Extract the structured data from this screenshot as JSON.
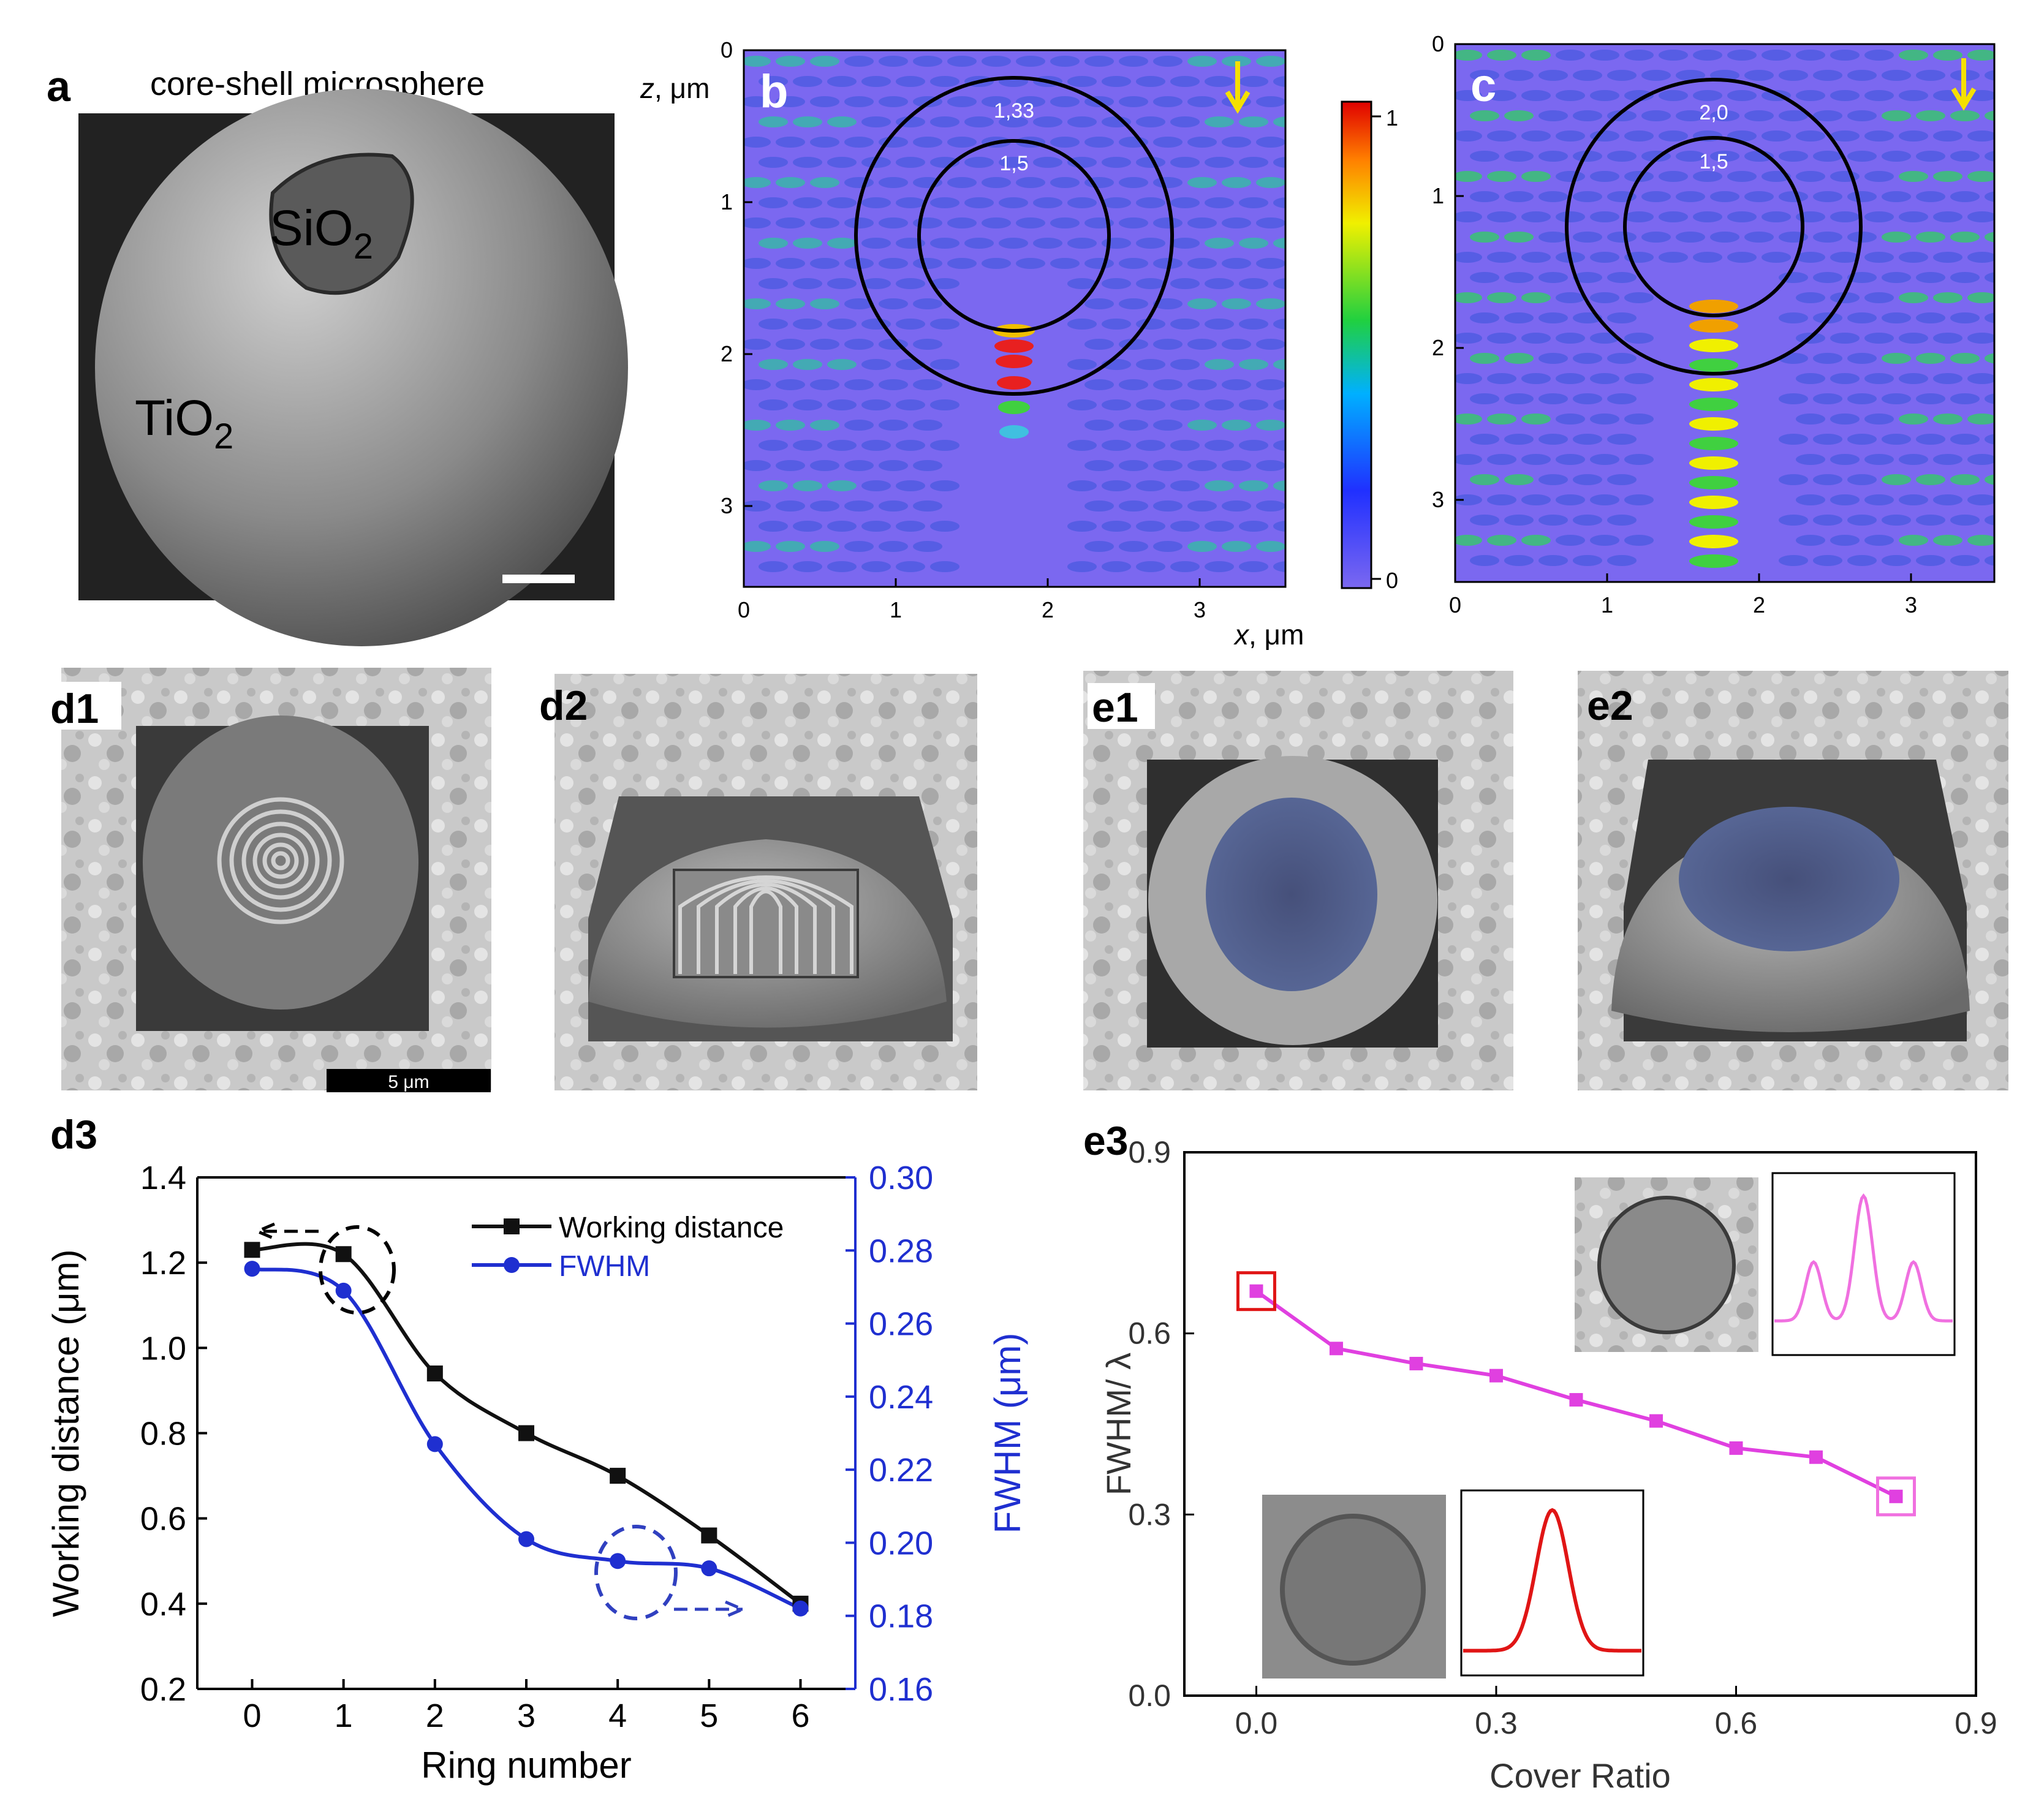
{
  "panels": {
    "a": {
      "letter": "a",
      "title": "core-shell microsphere",
      "core_label": "SiO",
      "core_sub": "2",
      "shell_label": "TiO",
      "shell_sub": "2"
    },
    "b": {
      "letter": "b",
      "outer_index": "1,33",
      "inner_index": "1,5"
    },
    "c": {
      "letter": "c",
      "outer_index": "2,0",
      "inner_index": "1,5"
    },
    "field_axes": {
      "z_label": "z",
      "z_unit": ", μm",
      "x_label": "x",
      "x_unit": ", μm",
      "x_ticks": [
        "0",
        "1",
        "2",
        "3"
      ],
      "z_ticks": [
        "0",
        "1",
        "2",
        "3"
      ],
      "colorbar_ticks": [
        "1",
        "0"
      ]
    },
    "d1": {
      "letter": "d1",
      "scale_bar": "5 μm"
    },
    "d2": {
      "letter": "d2"
    },
    "e1": {
      "letter": "e1"
    },
    "e2": {
      "letter": "e2"
    },
    "d3": {
      "letter": "d3"
    },
    "e3": {
      "letter": "e3"
    }
  },
  "colors": {
    "field_bg": "#7b68f0",
    "series_black": "#111111",
    "series_blue": "#1f2fd0",
    "magenta": "#e040e0",
    "red": "#e01515",
    "pink": "#f070e0"
  },
  "chart_data": [
    {
      "id": "d3",
      "type": "line",
      "title": "",
      "xlabel": "Ring number",
      "ylabel": "Working distance (μm)",
      "y2label": "FWHM (μm)",
      "xlim": [
        -0.6,
        6.6
      ],
      "ylim": [
        0.2,
        1.4
      ],
      "y2lim": [
        0.16,
        0.3
      ],
      "x_ticks": [
        0,
        1,
        2,
        3,
        4,
        5,
        6
      ],
      "y_ticks": [
        0.2,
        0.4,
        0.6,
        0.8,
        1.0,
        1.2,
        1.4
      ],
      "y2_ticks": [
        0.16,
        0.18,
        0.2,
        0.22,
        0.24,
        0.26,
        0.28,
        0.3
      ],
      "legend_position": "top-right",
      "x": [
        0,
        1,
        2,
        3,
        4,
        5,
        6
      ],
      "series": [
        {
          "name": "Working distance",
          "axis": "left",
          "marker": "square",
          "values": [
            1.23,
            1.22,
            0.94,
            0.8,
            0.7,
            0.56,
            0.4
          ]
        },
        {
          "name": "FWHM",
          "axis": "right",
          "marker": "circle",
          "values": [
            0.275,
            0.269,
            0.227,
            0.201,
            0.195,
            0.193,
            0.182
          ]
        }
      ]
    },
    {
      "id": "e3",
      "type": "line",
      "title": "",
      "xlabel": "Cover Ratio",
      "ylabel": "FWHM/ λ",
      "xlim": [
        -0.09,
        0.9
      ],
      "ylim": [
        0.0,
        0.9
      ],
      "x_ticks": [
        "0.0",
        "0.3",
        "0.6",
        "0.9"
      ],
      "y_ticks": [
        "0.0",
        "0.3",
        "0.6",
        "0.9"
      ],
      "series": [
        {
          "name": "FWHM/λ",
          "x": [
            0.0,
            0.1,
            0.2,
            0.3,
            0.4,
            0.5,
            0.6,
            0.7,
            0.8
          ],
          "values": [
            0.67,
            0.575,
            0.55,
            0.53,
            0.49,
            0.455,
            0.41,
            0.395,
            0.33
          ]
        }
      ],
      "highlighted_points": [
        0.0,
        0.8
      ]
    }
  ]
}
